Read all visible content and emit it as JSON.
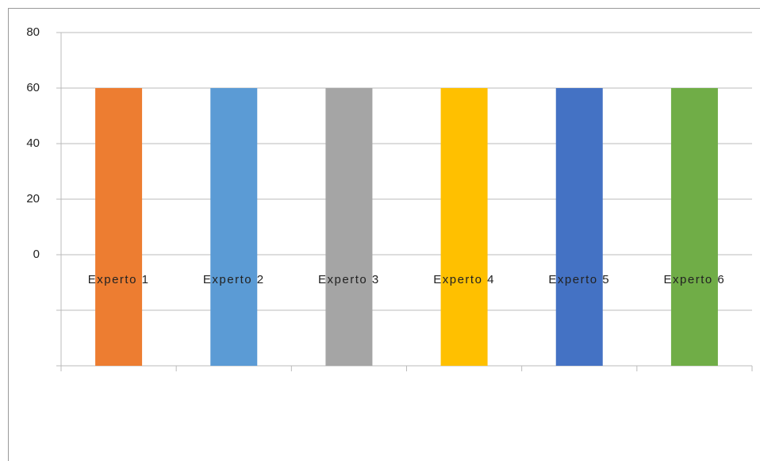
{
  "chart_data": {
    "type": "bar",
    "categories": [
      "Experto 1",
      "Experto 2",
      "Experto 3",
      "Experto 4",
      "Experto 5",
      "Experto 6"
    ],
    "values": [
      60,
      60,
      60,
      60,
      60,
      60
    ],
    "colors": [
      "#ed7d31",
      "#5b9bd5",
      "#a5a5a5",
      "#ffc000",
      "#4472c4",
      "#70ad47"
    ],
    "ylim": [
      -40,
      80
    ],
    "yticks": [
      {
        "value": -40,
        "label": null
      },
      {
        "value": -20,
        "label": null
      },
      0,
      20,
      40,
      60,
      80
    ],
    "grid": true
  }
}
